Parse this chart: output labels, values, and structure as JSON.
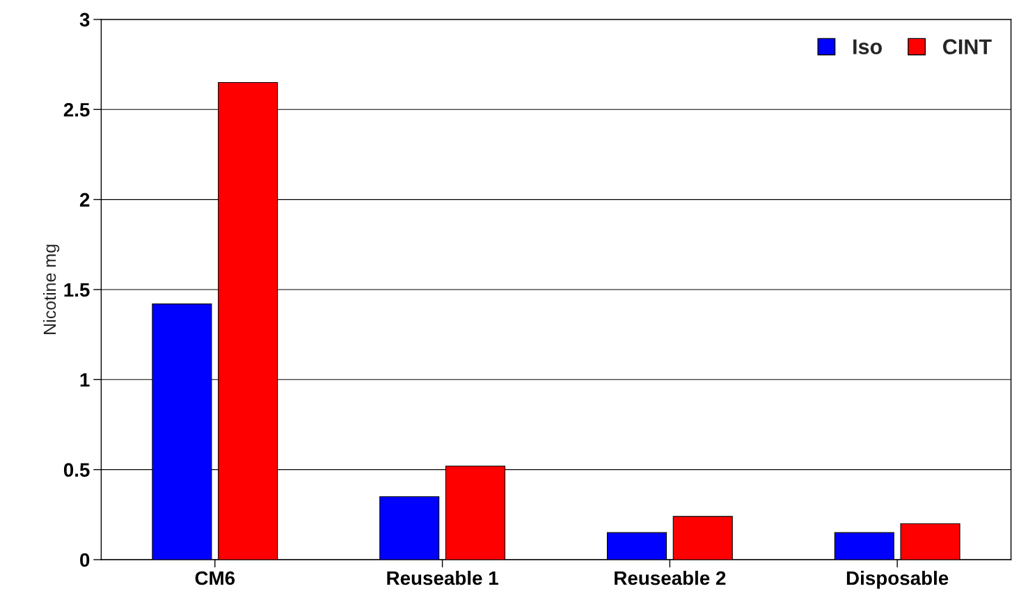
{
  "chart_data": {
    "type": "bar",
    "ylabel": "Nicotine mg",
    "categories": [
      "CM6",
      "Reuseable 1",
      "Reuseable 2",
      "Disposable"
    ],
    "series": [
      {
        "name": "Iso",
        "color": "#0000ff",
        "values": [
          1.42,
          0.35,
          0.15,
          0.15
        ]
      },
      {
        "name": "CINT",
        "color": "#ff0000",
        "values": [
          2.65,
          0.52,
          0.24,
          0.2
        ]
      }
    ],
    "ylim": [
      0,
      3
    ],
    "yticks": [
      0,
      0.5,
      1,
      1.5,
      2,
      2.5,
      3
    ],
    "grid": "y",
    "legend": "top right"
  }
}
